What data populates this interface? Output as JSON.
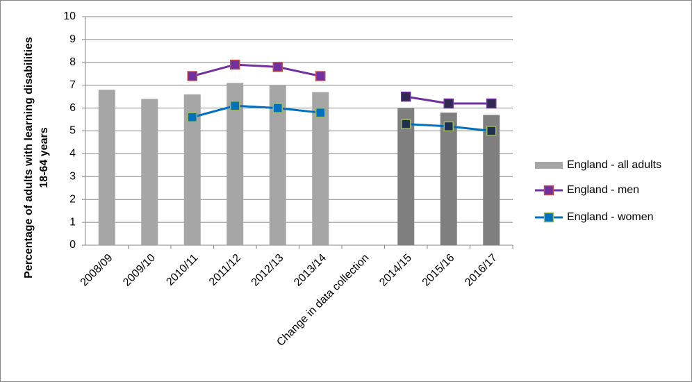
{
  "chart_data": {
    "type": "bar",
    "ylabel": [
      "Percentage of adults with learning disabilities",
      "18-64 years"
    ],
    "categories": [
      "2008/09",
      "2009/10",
      "2010/11",
      "2011/12",
      "2012/13",
      "2013/14",
      "Change in data collection",
      "2014/15",
      "2015/16",
      "2016/17"
    ],
    "series": [
      {
        "name": "England - all adults",
        "type": "bar",
        "color": "#a6a6a6",
        "colors": [
          "#a6a6a6",
          "#a6a6a6",
          "#a6a6a6",
          "#a6a6a6",
          "#a6a6a6",
          "#a6a6a6",
          null,
          "#7f7f7f",
          "#7f7f7f",
          "#7f7f7f"
        ],
        "values": [
          6.8,
          6.4,
          6.6,
          7.1,
          7.0,
          6.7,
          null,
          6.0,
          5.8,
          5.7
        ]
      },
      {
        "name": "England - men",
        "type": "line",
        "color": "#7030a0",
        "marker_colors": [
          "#7030a0",
          "#7030a0",
          "#7030a0",
          "#7030a0",
          "#7030a0",
          "#7030a0",
          null,
          "#2e2a50",
          "#2e2a50",
          "#2e2a50"
        ],
        "marker_edge_colors": [
          "#c0504d",
          "#c0504d",
          "#c0504d",
          "#c0504d",
          "#c0504d",
          "#c0504d",
          null,
          "#7030a0",
          "#7030a0",
          "#7030a0"
        ],
        "values": [
          null,
          null,
          7.4,
          7.9,
          7.8,
          7.4,
          null,
          6.5,
          6.2,
          6.2
        ]
      },
      {
        "name": "England - women",
        "type": "line",
        "color": "#0070c0",
        "marker_colors": [
          "#0070c0",
          "#0070c0",
          "#0070c0",
          "#0070c0",
          "#0070c0",
          "#0070c0",
          null,
          "#1f3050",
          "#1f3050",
          "#1f3050"
        ],
        "marker_edge_colors": [
          "#9bbb59",
          "#9bbb59",
          "#9bbb59",
          "#9bbb59",
          "#9bbb59",
          "#9bbb59",
          null,
          "#9bbb59",
          "#9bbb59",
          "#9bbb59"
        ],
        "values": [
          null,
          null,
          5.6,
          6.1,
          6.0,
          5.8,
          null,
          5.3,
          5.2,
          5.0
        ]
      }
    ],
    "ylim": [
      0,
      10
    ],
    "yticks": [
      0,
      1,
      2,
      3,
      4,
      5,
      6,
      7,
      8,
      9,
      10
    ],
    "grid": true,
    "legend": "right"
  }
}
